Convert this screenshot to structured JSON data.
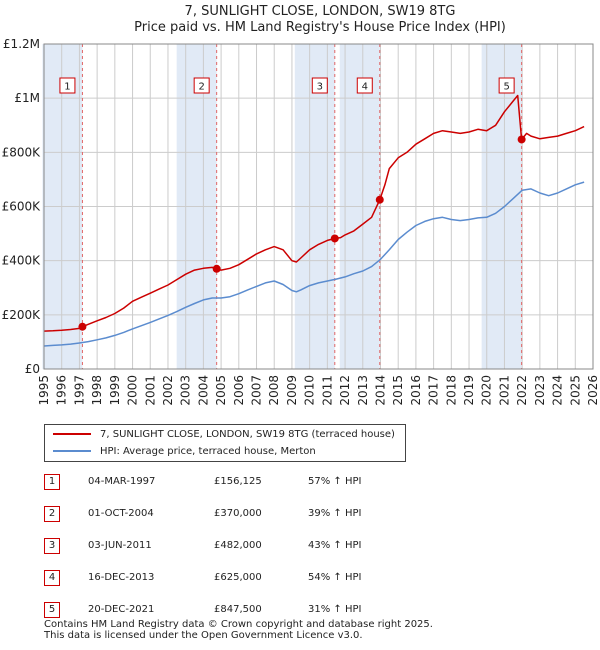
{
  "chart_data": {
    "type": "line",
    "title": "7, SUNLIGHT CLOSE, LONDON, SW19 8TG",
    "subtitle": "Price paid vs. HM Land Registry's House Price Index (HPI)",
    "xlim": [
      1995,
      2026
    ],
    "ylim": [
      0,
      1200000
    ],
    "x_ticks": [
      1995,
      1996,
      1997,
      1998,
      1999,
      2000,
      2001,
      2002,
      2003,
      2004,
      2005,
      2006,
      2007,
      2008,
      2009,
      2010,
      2011,
      2012,
      2013,
      2014,
      2015,
      2016,
      2017,
      2018,
      2019,
      2020,
      2021,
      2022,
      2023,
      2024,
      2025,
      2026
    ],
    "y_ticks": [
      {
        "value": 0,
        "label": "£0"
      },
      {
        "value": 200000,
        "label": "£200K"
      },
      {
        "value": 400000,
        "label": "£400K"
      },
      {
        "value": 600000,
        "label": "£600K"
      },
      {
        "value": 800000,
        "label": "£800K"
      },
      {
        "value": 1000000,
        "label": "£1M"
      },
      {
        "value": 1200000,
        "label": "£1.2M"
      }
    ],
    "grid": true,
    "series": [
      {
        "name": "7, SUNLIGHT CLOSE, LONDON, SW19 8TG (terraced house)",
        "color": "#cc0000",
        "x": [
          1995.0,
          1995.5,
          1996.0,
          1996.5,
          1997.0,
          1997.17,
          1997.5,
          1998.0,
          1998.5,
          1999.0,
          1999.5,
          2000.0,
          2000.5,
          2001.0,
          2001.5,
          2002.0,
          2002.5,
          2003.0,
          2003.5,
          2004.0,
          2004.5,
          2004.75,
          2005.0,
          2005.5,
          2006.0,
          2006.5,
          2007.0,
          2007.5,
          2008.0,
          2008.5,
          2009.0,
          2009.25,
          2009.5,
          2010.0,
          2010.5,
          2011.0,
          2011.42,
          2011.75,
          2012.0,
          2012.5,
          2013.0,
          2013.5,
          2013.96,
          2014.25,
          2014.5,
          2015.0,
          2015.5,
          2016.0,
          2016.5,
          2017.0,
          2017.5,
          2018.0,
          2018.5,
          2019.0,
          2019.5,
          2020.0,
          2020.5,
          2021.0,
          2021.5,
          2021.75,
          2021.97,
          2022.25,
          2022.5,
          2023.0,
          2023.5,
          2024.0,
          2024.5,
          2025.0,
          2025.5
        ],
        "values": [
          140000,
          141000,
          143000,
          146000,
          150000,
          156125,
          165000,
          178000,
          190000,
          205000,
          225000,
          250000,
          265000,
          280000,
          295000,
          310000,
          330000,
          350000,
          365000,
          372000,
          375000,
          370000,
          365000,
          372000,
          385000,
          405000,
          425000,
          440000,
          452000,
          440000,
          400000,
          395000,
          410000,
          440000,
          460000,
          475000,
          482000,
          485000,
          495000,
          510000,
          535000,
          560000,
          625000,
          680000,
          740000,
          780000,
          800000,
          830000,
          850000,
          870000,
          880000,
          875000,
          870000,
          875000,
          885000,
          880000,
          900000,
          950000,
          990000,
          1010000,
          847500,
          870000,
          860000,
          850000,
          855000,
          860000,
          870000,
          880000,
          895000
        ]
      },
      {
        "name": "HPI: Average price, terraced house, Merton",
        "color": "#5b8ccf",
        "x": [
          1995.0,
          1995.5,
          1996.0,
          1996.5,
          1997.0,
          1997.5,
          1998.0,
          1998.5,
          1999.0,
          1999.5,
          2000.0,
          2000.5,
          2001.0,
          2001.5,
          2002.0,
          2002.5,
          2003.0,
          2003.5,
          2004.0,
          2004.5,
          2005.0,
          2005.5,
          2006.0,
          2006.5,
          2007.0,
          2007.5,
          2008.0,
          2008.5,
          2009.0,
          2009.25,
          2009.5,
          2010.0,
          2010.5,
          2011.0,
          2011.5,
          2012.0,
          2012.5,
          2013.0,
          2013.5,
          2014.0,
          2014.5,
          2015.0,
          2015.5,
          2016.0,
          2016.5,
          2017.0,
          2017.5,
          2018.0,
          2018.5,
          2019.0,
          2019.5,
          2020.0,
          2020.5,
          2021.0,
          2021.5,
          2022.0,
          2022.5,
          2023.0,
          2023.5,
          2024.0,
          2024.5,
          2025.0,
          2025.5
        ],
        "values": [
          85000,
          87000,
          89000,
          92000,
          96000,
          101000,
          108000,
          115000,
          124000,
          135000,
          148000,
          160000,
          172000,
          185000,
          198000,
          212000,
          228000,
          242000,
          255000,
          262000,
          262000,
          267000,
          278000,
          292000,
          305000,
          318000,
          325000,
          312000,
          290000,
          285000,
          292000,
          308000,
          318000,
          325000,
          332000,
          340000,
          352000,
          362000,
          378000,
          405000,
          440000,
          478000,
          505000,
          530000,
          545000,
          555000,
          560000,
          552000,
          548000,
          552000,
          558000,
          560000,
          575000,
          600000,
          630000,
          660000,
          665000,
          650000,
          640000,
          650000,
          665000,
          680000,
          690000
        ]
      }
    ],
    "sales": [
      {
        "label": "1",
        "x": 1997.17,
        "value": 156125,
        "date": "04-MAR-1997",
        "price": "£156,125",
        "hpi": "57% ↑ HPI"
      },
      {
        "label": "2",
        "x": 2004.75,
        "value": 370000,
        "date": "01-OCT-2004",
        "price": "£370,000",
        "hpi": "39% ↑ HPI"
      },
      {
        "label": "3",
        "x": 2011.42,
        "value": 482000,
        "date": "03-JUN-2011",
        "price": "£482,000",
        "hpi": "43% ↑ HPI"
      },
      {
        "label": "4",
        "x": 2013.96,
        "value": 625000,
        "date": "16-DEC-2013",
        "price": "£625,000",
        "hpi": "54% ↑ HPI"
      },
      {
        "label": "5",
        "x": 2021.97,
        "value": 847500,
        "date": "20-DEC-2021",
        "price": "£847,500",
        "hpi": "31% ↑ HPI"
      }
    ],
    "legend": {
      "position": "below",
      "entries": [
        "7, SUNLIGHT CLOSE, LONDON, SW19 8TG (terraced house)",
        "HPI: Average price, terraced house, Merton"
      ]
    }
  },
  "colors": {
    "property_line": "#cc0000",
    "hpi_line": "#5b8ccf",
    "shade": "#dce6f5",
    "grid": "#cccccc",
    "marker_border": "#cc0000"
  },
  "footer": {
    "line1": "Contains HM Land Registry data © Crown copyright and database right 2025.",
    "line2": "This data is licensed under the Open Government Licence v3.0."
  }
}
